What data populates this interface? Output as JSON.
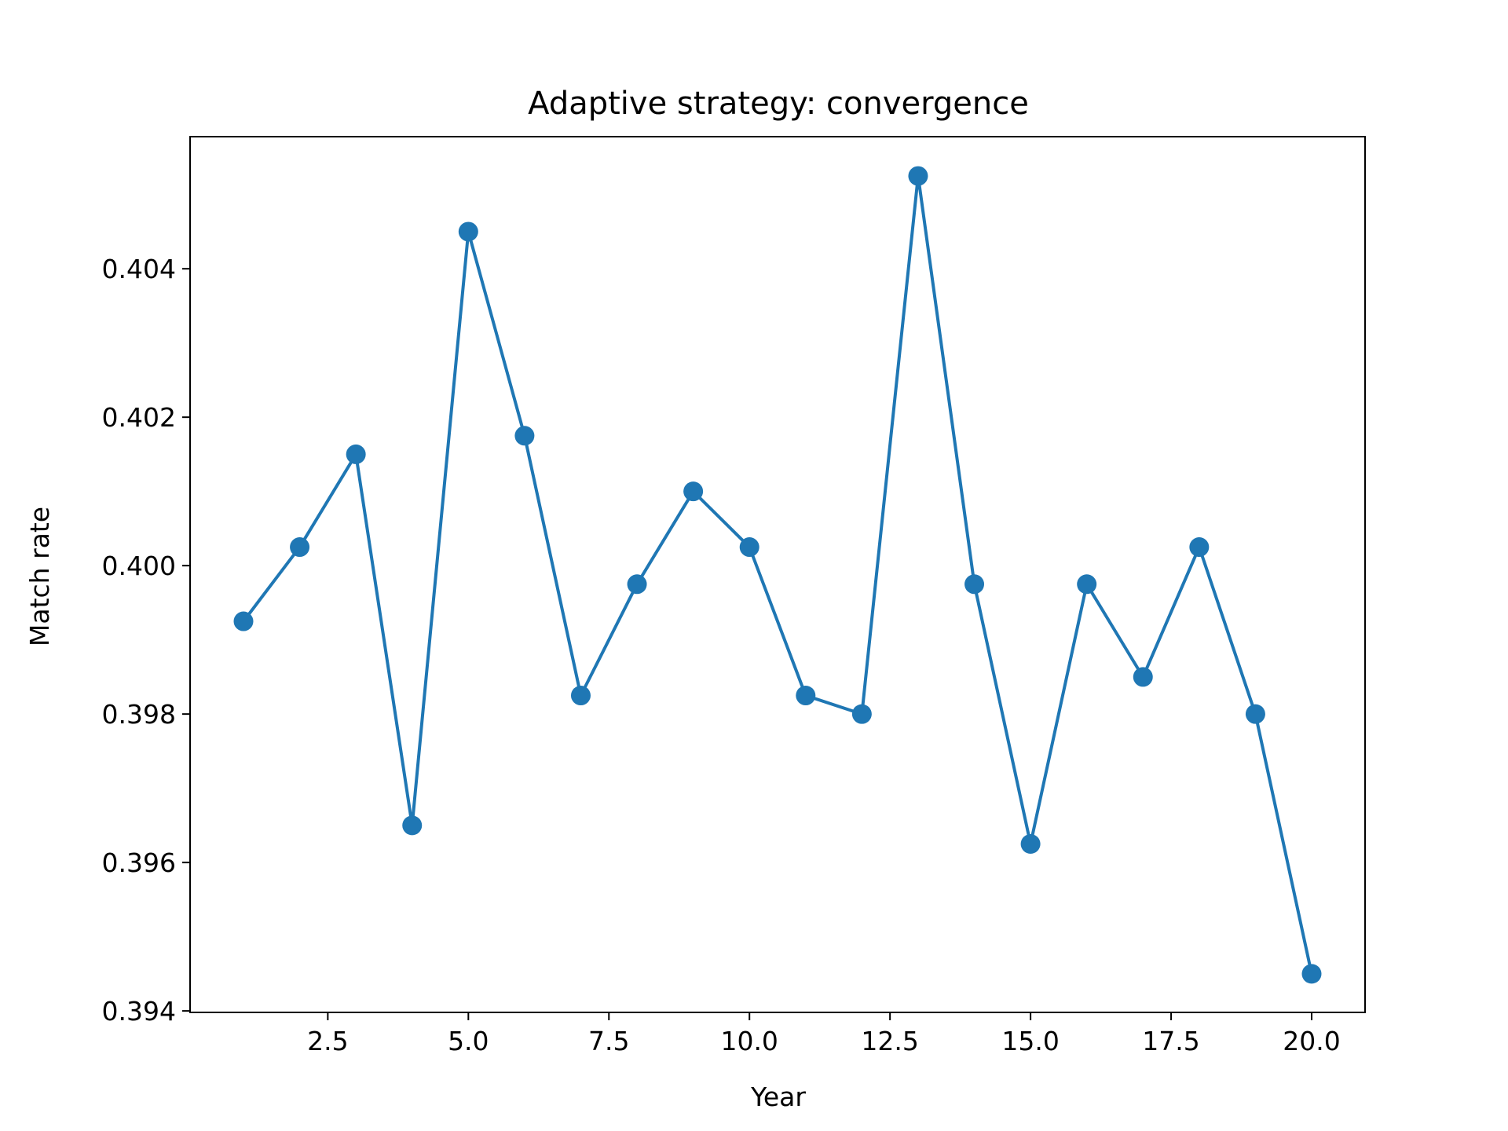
{
  "chart_data": {
    "type": "line",
    "title": "Adaptive strategy: convergence",
    "xlabel": "Year",
    "ylabel": "Match rate",
    "xlim": [
      0.05,
      20.95
    ],
    "ylim": [
      0.39398,
      0.40578
    ],
    "xticks": [
      2.5,
      5.0,
      7.5,
      10.0,
      12.5,
      15.0,
      17.5,
      20.0
    ],
    "xtick_labels": [
      "2.5",
      "5.0",
      "7.5",
      "10.0",
      "12.5",
      "15.0",
      "17.5",
      "20.0"
    ],
    "yticks": [
      0.394,
      0.396,
      0.398,
      0.4,
      0.402,
      0.404
    ],
    "ytick_labels": [
      "0.394",
      "0.396",
      "0.398",
      "0.400",
      "0.402",
      "0.404"
    ],
    "grid": false,
    "series": [
      {
        "color": "#1f77b4",
        "marker": "circle",
        "x": [
          1,
          2,
          3,
          4,
          5,
          6,
          7,
          8,
          9,
          10,
          11,
          12,
          13,
          14,
          15,
          16,
          17,
          18,
          19,
          20
        ],
        "y": [
          0.39925,
          0.40025,
          0.4015,
          0.3965,
          0.4045,
          0.40175,
          0.39825,
          0.39975,
          0.401,
          0.40025,
          0.39825,
          0.398,
          0.40525,
          0.39975,
          0.39625,
          0.39975,
          0.3985,
          0.40025,
          0.398,
          0.3945
        ]
      }
    ]
  }
}
